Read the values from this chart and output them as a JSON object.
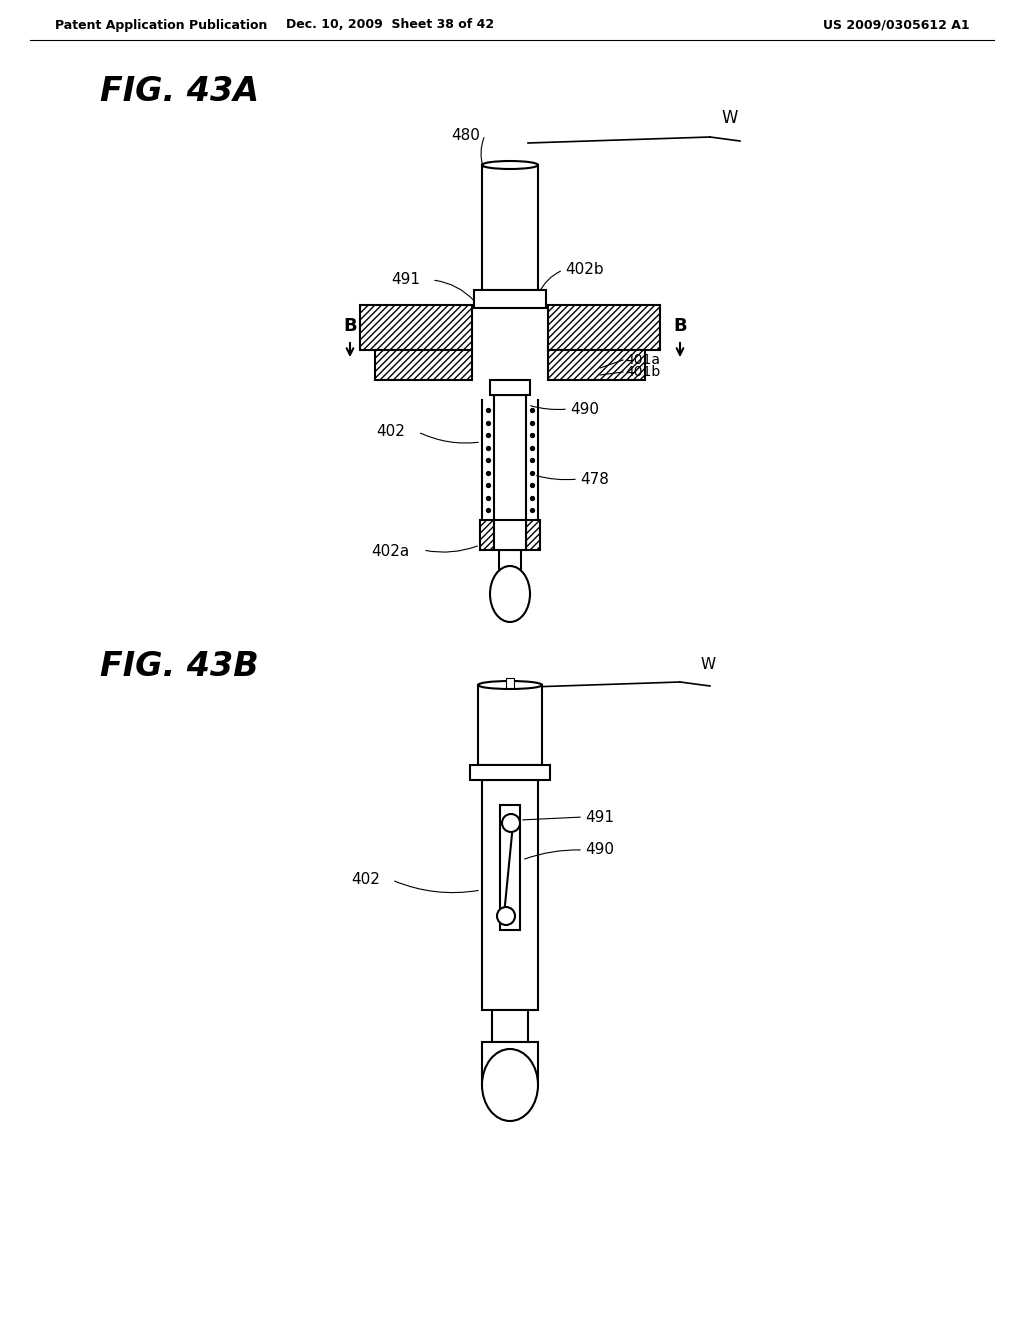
{
  "bg_color": "#ffffff",
  "line_color": "#000000",
  "header_left": "Patent Application Publication",
  "header_center": "Dec. 10, 2009  Sheet 38 of 42",
  "header_right": "US 2009/0305612 A1",
  "fig_a_label": "FIG. 43A",
  "fig_b_label": "FIG. 43B",
  "lw": 1.5
}
